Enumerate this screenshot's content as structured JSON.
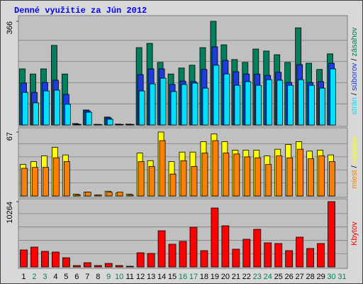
{
  "chart_data": {
    "type": "bar",
    "title": "Denné využitie za Jún 2012",
    "categories": [
      "1",
      "2",
      "3",
      "4",
      "5",
      "6",
      "7",
      "8",
      "9",
      "10",
      "11",
      "12",
      "13",
      "14",
      "15",
      "16",
      "17",
      "18",
      "19",
      "20",
      "21",
      "22",
      "23",
      "24",
      "25",
      "26",
      "27",
      "28",
      "29",
      "30",
      "31"
    ],
    "category_colors": [
      "#000000",
      "#00805c",
      "#00805c",
      "#000000",
      "#000000",
      "#000000",
      "#000000",
      "#000000",
      "#00805c",
      "#00805c",
      "#000000",
      "#000000",
      "#000000",
      "#000000",
      "#000000",
      "#00805c",
      "#00805c",
      "#000000",
      "#000000",
      "#000000",
      "#000000",
      "#000000",
      "#00805c",
      "#00805c",
      "#000000",
      "#000000",
      "#000000",
      "#000000",
      "#000000",
      "#00805c",
      "#00805c"
    ],
    "separator": "/",
    "panels": [
      {
        "ylim": [
          0,
          366
        ],
        "yticks": [
          366
        ],
        "series": [
          {
            "name": "zásahov",
            "color": "#00805c",
            "values": [
              198,
              180,
              198,
              281,
              180,
              5,
              53,
              2,
              28,
              3,
              3,
              273,
              288,
              221,
              180,
              201,
              211,
              273,
              366,
              283,
              231,
              221,
              268,
              261,
              248,
              221,
              343,
              218,
              196,
              251,
              0
            ]
          },
          {
            "name": "súborov",
            "color": "#1c3ce0",
            "values": [
              148,
              115,
              150,
              158,
              108,
              3,
              50,
              2,
              25,
              2,
              2,
              178,
              198,
              198,
              143,
              155,
              153,
              196,
              276,
              228,
              188,
              180,
              180,
              175,
              186,
              150,
              213,
              150,
              153,
              218,
              0
            ]
          },
          {
            "name": "strán",
            "color": "#00e0ff",
            "values": [
              115,
              78,
              120,
              123,
              73,
              2,
              45,
              1,
              20,
              2,
              2,
              120,
              145,
              165,
              118,
              143,
              148,
              130,
              211,
              180,
              140,
              153,
              140,
              160,
              158,
              140,
              160,
              140,
              130,
              198,
              0
            ]
          }
        ]
      },
      {
        "ylim": [
          0,
          67
        ],
        "yticks": [
          67
        ],
        "series": [
          {
            "name": "návštev",
            "color": "#ffff00",
            "values": [
              33,
              36,
              42,
              51,
              43,
              2,
              4,
              1,
              5,
              3,
              2,
              45,
              37,
              67,
              36,
              46,
              46,
              57,
              65,
              57,
              48,
              48,
              48,
              42,
              49,
              54,
              57,
              47,
              48,
              43,
              0
            ]
          },
          {
            "name": "miest",
            "color": "#ff8000",
            "values": [
              29,
              30,
              30,
              40,
              36,
              1,
              4,
              1,
              4,
              4,
              1,
              36,
              31,
              58,
              23,
              37,
              31,
              45,
              58,
              45,
              44,
              41,
              40,
              33,
              42,
              40,
              49,
              39,
              42,
              36,
              0
            ]
          }
        ]
      },
      {
        "ylim": [
          0,
          10264
        ],
        "yticks": [
          10264
        ],
        "series": [
          {
            "name": "Kbytov",
            "color": "#ff0000",
            "values": [
              2678,
              3125,
              2455,
              2343,
              1450,
              223,
              670,
              223,
              558,
              223,
              112,
              2232,
              2120,
              5691,
              3571,
              4017,
              6249,
              2566,
              9262,
              6472,
              2790,
              4352,
              5914,
              3794,
              3682,
              2566,
              4687,
              2901,
              3682,
              10264,
              0
            ]
          }
        ]
      }
    ]
  }
}
